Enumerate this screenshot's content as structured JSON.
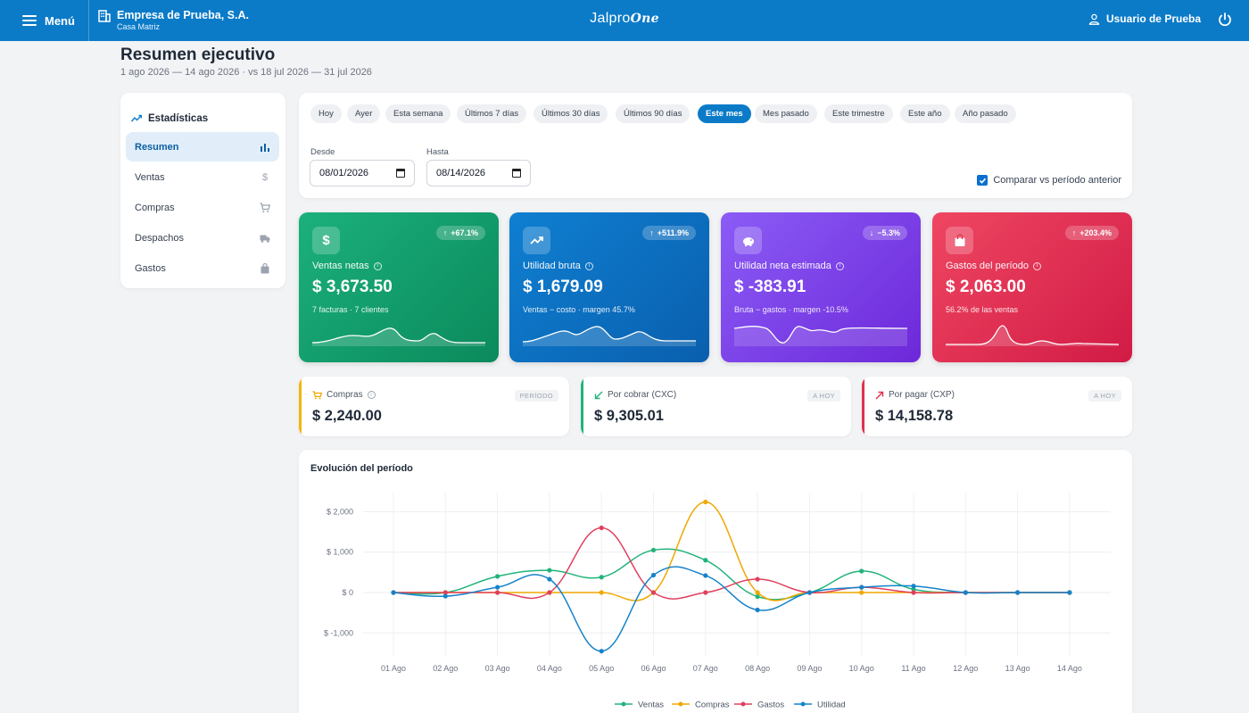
{
  "topbar": {
    "menu_label": "Menú",
    "company_name": "Empresa de Prueba, S.A.",
    "company_branch": "Casa Matriz",
    "brand_prefix": "Jalpro",
    "brand_suffix": "One",
    "user_name": "Usuario de Prueba"
  },
  "header": {
    "title": "Resumen ejecutivo",
    "subtitle": "1 ago 2026 — 14 ago 2026 · vs 18 jul 2026 — 31 jul 2026"
  },
  "sidebar": {
    "title": "Estadísticas",
    "items": [
      {
        "label": "Resumen",
        "icon": "bar-chart-icon",
        "active": true
      },
      {
        "label": "Ventas",
        "icon": "dollar-icon",
        "active": false
      },
      {
        "label": "Compras",
        "icon": "cart-icon",
        "active": false
      },
      {
        "label": "Despachos",
        "icon": "truck-icon",
        "active": false
      },
      {
        "label": "Gastos",
        "icon": "bag-icon",
        "active": false
      }
    ]
  },
  "filters": {
    "presets": [
      "Hoy",
      "Ayer",
      "Esta semana",
      "Últimos 7 días",
      "Últimos 30 días",
      "Últimos 90 días",
      "Este mes",
      "Mes pasado",
      "Este trimestre",
      "Este año",
      "Año pasado"
    ],
    "active_preset": "Este mes",
    "from_label": "Desde",
    "from_value": "08/01/2026",
    "to_label": "Hasta",
    "to_value": "08/14/2026",
    "compare_label": "Comparar vs período anterior",
    "compare_checked": true
  },
  "kpis": [
    {
      "label": "Ventas netas",
      "value": "$ 3,673.50",
      "sub": "7 facturas · 7 clientes",
      "badge": "+67.1%",
      "trend": "up",
      "icon": "dollar-icon",
      "color": "#12a06d"
    },
    {
      "label": "Utilidad bruta",
      "value": "$ 1,679.09",
      "sub": "Ventas − costo · margen 45.7%",
      "badge": "+511.9%",
      "trend": "up",
      "icon": "trending-up-icon",
      "color": "#0c72c2"
    },
    {
      "label": "Utilidad neta estimada",
      "value": "$ -383.91",
      "sub": "Bruta − gastos · margen -10.5%",
      "badge": "−5.3%",
      "trend": "down",
      "icon": "piggy-bank-icon",
      "color": "#7c3aed"
    },
    {
      "label": "Gastos del período",
      "value": "$ 2,063.00",
      "sub": "56.2% de las ventas",
      "badge": "+203.4%",
      "trend": "up",
      "icon": "shopping-bag-icon",
      "color": "#e0304f"
    }
  ],
  "mini_cards": [
    {
      "label": "Compras",
      "value": "$ 2,240.00",
      "tag": "PERÍODO",
      "accent": "#f5b301",
      "icon": "cart-icon"
    },
    {
      "label": "Por cobrar (CXC)",
      "value": "$ 9,305.01",
      "tag": "A HOY",
      "accent": "#21b37a",
      "icon": "arrow-down-left-icon"
    },
    {
      "label": "Por pagar (CXP)",
      "value": "$ 14,158.78",
      "tag": "A HOY",
      "accent": "#e0304f",
      "icon": "arrow-up-right-icon"
    }
  ],
  "chart": {
    "title": "Evolución del período"
  },
  "chart_data": {
    "type": "line",
    "categories": [
      "01 Ago",
      "02 Ago",
      "03 Ago",
      "04 Ago",
      "05 Ago",
      "06 Ago",
      "07 Ago",
      "08 Ago",
      "09 Ago",
      "10 Ago",
      "11 Ago",
      "12 Ago",
      "13 Ago",
      "14 Ago"
    ],
    "y_ticks": [
      "$ 2,000",
      "$ 1,000",
      "$ 0",
      "$ -1,000"
    ],
    "y_tick_values": [
      2000,
      1000,
      0,
      -1000
    ],
    "ylim": [
      -1450,
      2450
    ],
    "grid": true,
    "legend_position": "bottom",
    "series": [
      {
        "name": "Ventas",
        "color": "#21b37a",
        "values": [
          0,
          0,
          400,
          550,
          380,
          1050,
          800,
          -100,
          0,
          530,
          80,
          0,
          0,
          0
        ]
      },
      {
        "name": "Compras",
        "color": "#f0a800",
        "values": [
          0,
          0,
          0,
          0,
          0,
          0,
          2240,
          0,
          0,
          0,
          0,
          0,
          0,
          0
        ]
      },
      {
        "name": "Gastos",
        "color": "#e0405e",
        "values": [
          0,
          0,
          0,
          0,
          1600,
          0,
          0,
          330,
          0,
          130,
          0,
          0,
          0,
          0
        ]
      },
      {
        "name": "Utilidad",
        "color": "#1583c9",
        "values": [
          0,
          -90,
          130,
          330,
          -1450,
          430,
          420,
          -430,
          0,
          130,
          160,
          0,
          0,
          0
        ]
      }
    ]
  }
}
